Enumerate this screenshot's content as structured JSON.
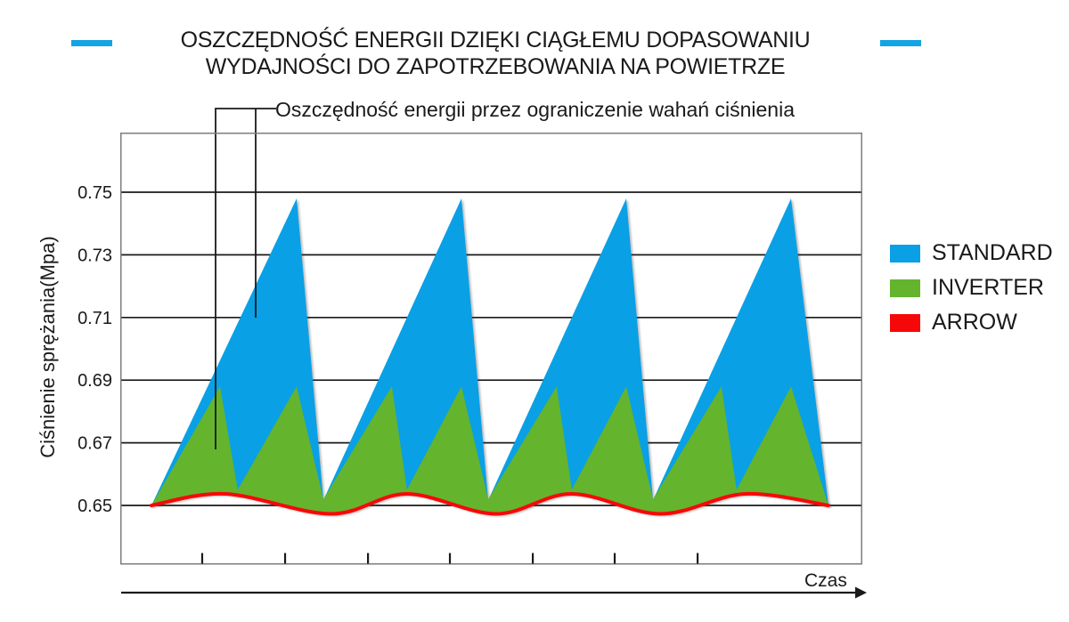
{
  "header": {
    "title_line1": "OSZCZĘDNOŚĆ ENERGII DZIĘKI CIĄGŁEMU DOPASOWANIU",
    "title_line2": "WYDAJNOŚCI DO ZAPOTRZEBOWANIA NA POWIETRZE",
    "accent_color": "#14A3E4"
  },
  "annotation": {
    "text": "Oszczędność energii przez ograniczenie wahań ciśnienia"
  },
  "axes": {
    "y_label": "Ciśnienie sprężania(Mpa)",
    "x_label": "Czas"
  },
  "legend": {
    "items": [
      {
        "label": "STANDARD",
        "color": "#09A0E6"
      },
      {
        "label": "INVERTER",
        "color": "#64B42D"
      },
      {
        "label": "ARROW",
        "color": "#F70808"
      }
    ]
  },
  "chart_data": {
    "type": "area",
    "title": "Oszczędność energii dzięki ciągłemu dopasowaniu wydajności do zapotrzebowania na powietrze",
    "xlabel": "Czas",
    "ylabel": "Ciśnienie sprężania(Mpa)",
    "ylim": [
      0.631,
      0.769
    ],
    "yticks": [
      0.75,
      0.73,
      0.71,
      0.69,
      0.67,
      0.65
    ],
    "xlim_t": [
      -0.189,
      4.314
    ],
    "xticks_t": [
      0.308,
      0.811,
      1.314,
      1.811,
      2.314,
      2.811,
      3.314
    ],
    "grid": true,
    "legend_position": "right",
    "series": [
      {
        "name": "STANDARD",
        "color": "#09A0E6",
        "render": "area",
        "points": [
          [
            0,
            0.65
          ],
          [
            0.881,
            0.748
          ],
          [
            1.043,
            0.6517
          ],
          [
            1.881,
            0.748
          ],
          [
            2.043,
            0.6517
          ],
          [
            2.881,
            0.748
          ],
          [
            3.043,
            0.6517
          ],
          [
            3.881,
            0.748
          ],
          [
            4.108,
            0.65
          ]
        ]
      },
      {
        "name": "INVERTER",
        "color": "#64B42D",
        "render": "area",
        "points": [
          [
            0,
            0.65
          ],
          [
            0.416,
            0.688
          ],
          [
            0.524,
            0.655
          ],
          [
            0.881,
            0.688
          ],
          [
            1.043,
            0.652
          ],
          [
            1.459,
            0.688
          ],
          [
            1.551,
            0.655
          ],
          [
            1.881,
            0.688
          ],
          [
            2.043,
            0.652
          ],
          [
            2.459,
            0.688
          ],
          [
            2.551,
            0.655
          ],
          [
            2.881,
            0.688
          ],
          [
            3.043,
            0.652
          ],
          [
            3.459,
            0.688
          ],
          [
            3.551,
            0.655
          ],
          [
            3.881,
            0.688
          ],
          [
            4.108,
            0.65
          ]
        ]
      },
      {
        "name": "ARROW",
        "color": "#F70808",
        "render": "line",
        "points": [
          [
            0,
            0.65
          ],
          [
            0.45,
            0.6537
          ],
          [
            1.09,
            0.6473
          ],
          [
            1.55,
            0.6537
          ],
          [
            2.09,
            0.6473
          ],
          [
            2.55,
            0.6537
          ],
          [
            3.09,
            0.6473
          ],
          [
            3.6,
            0.6537
          ],
          [
            4.108,
            0.65
          ]
        ]
      }
    ]
  }
}
